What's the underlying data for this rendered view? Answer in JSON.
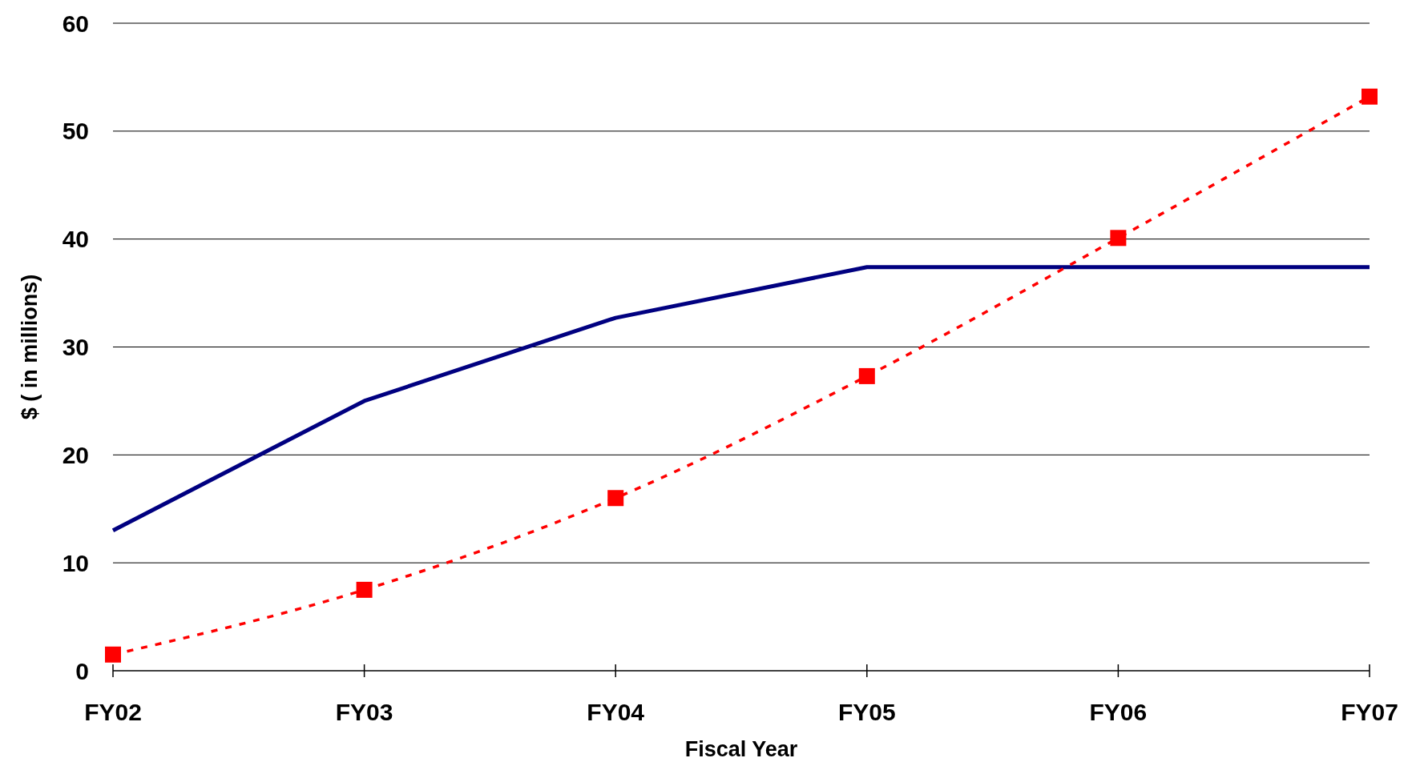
{
  "chart_data": {
    "type": "line",
    "xlabel": "Fiscal Year",
    "ylabel": "$ ( in millions)",
    "categories": [
      "FY02",
      "FY03",
      "FY04",
      "FY05",
      "FY06",
      "FY07"
    ],
    "series": [
      {
        "color": "#000080",
        "values": [
          13,
          25,
          32.7,
          37.4,
          37.4,
          37.4
        ],
        "line_style": "solid",
        "marker": "none"
      },
      {
        "color": "#ff0000",
        "values": [
          1.5,
          7.5,
          16,
          27.3,
          40.1,
          53.2
        ],
        "line_style": "dashed",
        "marker": "square"
      }
    ],
    "ylim": [
      0,
      60
    ],
    "yticks": [
      0,
      10,
      20,
      30,
      40,
      50,
      60
    ],
    "grid": "y"
  }
}
